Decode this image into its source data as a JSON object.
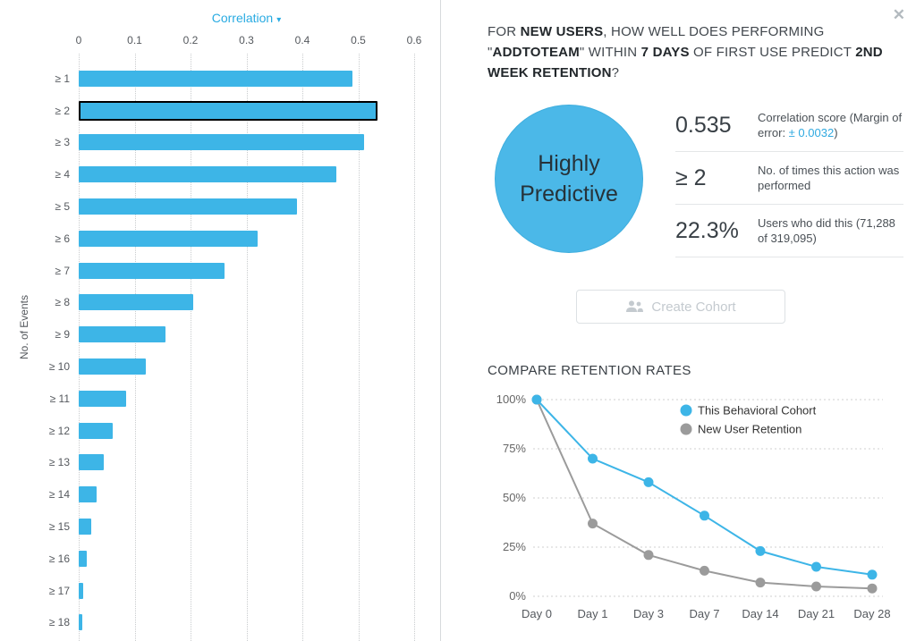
{
  "left_chart": {
    "dropdown_label": "Correlation",
    "chevron": "▾",
    "ylabel": "No. of Events"
  },
  "chart_data": [
    {
      "type": "bar",
      "orientation": "horizontal",
      "title": "Correlation",
      "ylabel": "No. of Events",
      "categories": [
        "≥ 1",
        "≥ 2",
        "≥ 3",
        "≥ 4",
        "≥ 5",
        "≥ 6",
        "≥ 7",
        "≥ 8",
        "≥ 9",
        "≥ 10",
        "≥ 11",
        "≥ 12",
        "≥ 13",
        "≥ 14",
        "≥ 15",
        "≥ 16",
        "≥ 17",
        "≥ 18"
      ],
      "values": [
        0.49,
        0.535,
        0.51,
        0.46,
        0.39,
        0.32,
        0.26,
        0.205,
        0.155,
        0.12,
        0.085,
        0.06,
        0.045,
        0.032,
        0.022,
        0.015,
        0.008,
        0.006
      ],
      "selected_index": 1,
      "xlim": [
        0,
        0.6
      ],
      "xtick_labels": [
        "0",
        "0.1",
        "0.2",
        "0.3",
        "0.4",
        "0.5",
        "0.6"
      ],
      "bar_color": "#3db5e7",
      "selected_border_color": "#000000",
      "grid": true
    },
    {
      "type": "line",
      "title": "COMPARE RETENTION RATES",
      "x": [
        "Day 0",
        "Day 1",
        "Day 3",
        "Day 7",
        "Day 14",
        "Day 21",
        "Day 28"
      ],
      "series": [
        {
          "name": "This Behavioral Cohort",
          "color": "#3db5e7",
          "values": [
            100,
            70,
            58,
            41,
            23,
            15,
            11
          ]
        },
        {
          "name": "New User Retention",
          "color": "#9b9b9b",
          "values": [
            100,
            37,
            21,
            13,
            7,
            5,
            4
          ]
        }
      ],
      "yticks": [
        0,
        25,
        50,
        75,
        100
      ],
      "ytick_suffix": "%",
      "ylim": [
        0,
        100
      ],
      "grid": true,
      "legend_position": "top-right"
    }
  ],
  "detail_panel": {
    "close_glyph": "✕",
    "question_segments": [
      {
        "text": "FOR ",
        "bold": false
      },
      {
        "text": "NEW USERS",
        "bold": true
      },
      {
        "text": ", HOW WELL DOES PERFORMING \"",
        "bold": false
      },
      {
        "text": "ADDTOTEAM",
        "bold": true
      },
      {
        "text": "\" WITHIN ",
        "bold": false
      },
      {
        "text": "7 DAYS",
        "bold": true
      },
      {
        "text": " OF FIRST USE PREDICT ",
        "bold": false
      },
      {
        "text": "2ND WEEK RETENTION",
        "bold": true
      },
      {
        "text": "?",
        "bold": false
      }
    ],
    "badge": {
      "line1": "Highly",
      "line2": "Predictive",
      "color": "#4bb8e8"
    },
    "stats": [
      {
        "value": "0.535",
        "desc_segments": [
          {
            "text": "Correlation score (Margin of error: "
          },
          {
            "text": "± 0.0032",
            "accent": true
          },
          {
            "text": ")"
          }
        ]
      },
      {
        "value": "≥ 2",
        "desc_segments": [
          {
            "text": "No. of times this action was performed"
          }
        ]
      },
      {
        "value": "22.3%",
        "desc_segments": [
          {
            "text": "Users who did this (71,288 of 319,095)"
          }
        ]
      }
    ],
    "cohort_button_label": "Create Cohort",
    "compare_title": "COMPARE RETENTION RATES"
  },
  "colors": {
    "accent_blue": "#2fa9e0",
    "bar_blue": "#3db5e7",
    "line_gray": "#9b9b9b"
  }
}
